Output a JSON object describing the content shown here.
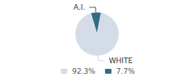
{
  "chart_data": {
    "type": "pie",
    "categories": [
      "WHITE",
      "A.I."
    ],
    "values": [
      92.3,
      7.7
    ],
    "value_labels": [
      "92.3%",
      "7.7%"
    ],
    "colors": [
      "#d4dce8",
      "#336b87"
    ],
    "legend": "bottom"
  }
}
